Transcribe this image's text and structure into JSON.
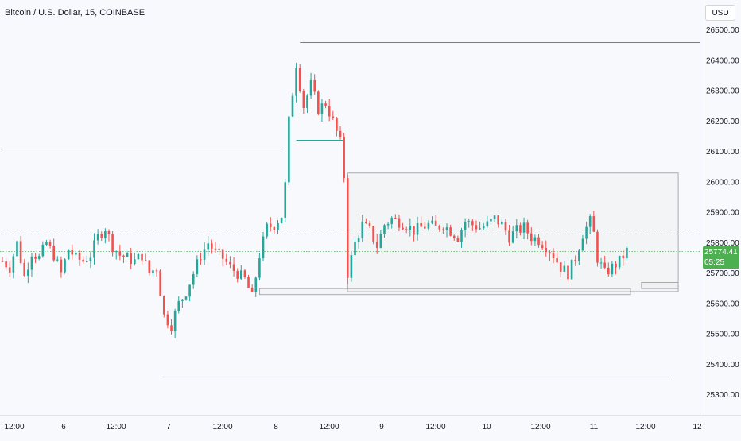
{
  "header": {
    "title": "Bitcoin / U.S. Dollar, 15, COINBASE",
    "currency": "USD"
  },
  "last_price": {
    "value": "25774.41",
    "countdown": "05:25",
    "color": "#4caf50"
  },
  "colors": {
    "up": "#26a69a",
    "down": "#ef5350",
    "background": "#f7f9fc",
    "level_line": "#787b86",
    "dotted_level": "#787b86",
    "last_price_line": "#4caf50",
    "zone_fill": "#ebebeb"
  },
  "chart_data": {
    "type": "candlestick",
    "title": "Bitcoin / U.S. Dollar, 15, COINBASE",
    "y_axis": {
      "ticks": [
        "26500.00",
        "26400.00",
        "26300.00",
        "26200.00",
        "26100.00",
        "26000.00",
        "25900.00",
        "25800.00",
        "25700.00",
        "25600.00",
        "25500.00",
        "25400.00",
        "25300.00"
      ],
      "range": [
        25250,
        26560
      ]
    },
    "x_axis": {
      "ticks": [
        "12:00",
        "6",
        "12:00",
        "7",
        "12:00",
        "8",
        "12:00",
        "9",
        "12:00",
        "10",
        "12:00",
        "11",
        "12:00",
        "12"
      ]
    },
    "price_path": [
      [
        0,
        25740
      ],
      [
        2,
        25720
      ],
      [
        4,
        25800
      ],
      [
        6,
        25690
      ],
      [
        8,
        25770
      ],
      [
        10,
        25750
      ],
      [
        12,
        25800
      ],
      [
        14,
        25760
      ],
      [
        16,
        25700
      ],
      [
        18,
        25780
      ],
      [
        20,
        25750
      ],
      [
        22,
        25740
      ],
      [
        24,
        25760
      ],
      [
        26,
        25820
      ],
      [
        28,
        25850
      ],
      [
        30,
        25790
      ],
      [
        32,
        25760
      ],
      [
        34,
        25750
      ],
      [
        36,
        25740
      ],
      [
        38,
        25760
      ],
      [
        40,
        25700
      ],
      [
        42,
        25720
      ],
      [
        44,
        25560
      ],
      [
        46,
        25530
      ],
      [
        48,
        25600
      ],
      [
        50,
        25640
      ],
      [
        52,
        25700
      ],
      [
        54,
        25760
      ],
      [
        56,
        25800
      ],
      [
        58,
        25770
      ],
      [
        60,
        25750
      ],
      [
        62,
        25720
      ],
      [
        64,
        25700
      ],
      [
        66,
        25680
      ],
      [
        68,
        25620
      ],
      [
        70,
        25760
      ],
      [
        72,
        25850
      ],
      [
        74,
        25860
      ],
      [
        76,
        25890
      ],
      [
        77,
        25990
      ],
      [
        78,
        26200
      ],
      [
        80,
        26390
      ],
      [
        82,
        26250
      ],
      [
        84,
        26320
      ],
      [
        86,
        26240
      ],
      [
        88,
        26260
      ],
      [
        90,
        26200
      ],
      [
        92,
        26130
      ],
      [
        93,
        26020
      ],
      [
        94,
        25700
      ],
      [
        96,
        25800
      ],
      [
        98,
        25860
      ],
      [
        100,
        25840
      ],
      [
        102,
        25790
      ],
      [
        104,
        25860
      ],
      [
        106,
        25880
      ],
      [
        108,
        25870
      ],
      [
        110,
        25860
      ],
      [
        112,
        25840
      ],
      [
        114,
        25850
      ],
      [
        116,
        25860
      ],
      [
        118,
        25850
      ],
      [
        120,
        25860
      ],
      [
        122,
        25840
      ],
      [
        124,
        25820
      ],
      [
        126,
        25870
      ],
      [
        128,
        25860
      ],
      [
        130,
        25850
      ],
      [
        132,
        25860
      ],
      [
        134,
        25880
      ],
      [
        136,
        25860
      ],
      [
        138,
        25820
      ],
      [
        140,
        25840
      ],
      [
        142,
        25850
      ],
      [
        144,
        25820
      ],
      [
        146,
        25810
      ],
      [
        148,
        25790
      ],
      [
        150,
        25760
      ],
      [
        152,
        25720
      ],
      [
        154,
        25700
      ],
      [
        156,
        25750
      ],
      [
        158,
        25830
      ],
      [
        160,
        25870
      ],
      [
        161,
        25830
      ],
      [
        162,
        25750
      ],
      [
        164,
        25700
      ],
      [
        166,
        25720
      ],
      [
        168,
        25740
      ],
      [
        170,
        25774
      ]
    ],
    "levels": [
      {
        "name": "swing-high-26460",
        "value": 26460,
        "from": 81,
        "to": 200,
        "style": "solid"
      },
      {
        "name": "level-26110",
        "value": 26110,
        "from": 0,
        "to": 77,
        "style": "solid"
      },
      {
        "name": "range-low-26140",
        "value": 26140,
        "from": 80,
        "to": 93,
        "style": "solid",
        "color": "#26a69a"
      },
      {
        "name": "swing-low-25360",
        "value": 25360,
        "from": 43,
        "to": 182,
        "style": "solid"
      },
      {
        "name": "dotted-25830",
        "value": 25830,
        "from": 0,
        "to": 200,
        "style": "dotted"
      }
    ],
    "zones": [
      {
        "name": "range-box",
        "top": 26030,
        "bottom": 25640,
        "from": 94,
        "to": 184
      },
      {
        "name": "low-zone-1",
        "top": 25650,
        "bottom": 25630,
        "from": 70,
        "to": 171
      },
      {
        "name": "low-zone-2",
        "top": 25670,
        "bottom": 25650,
        "from": 174,
        "to": 184
      }
    ]
  }
}
